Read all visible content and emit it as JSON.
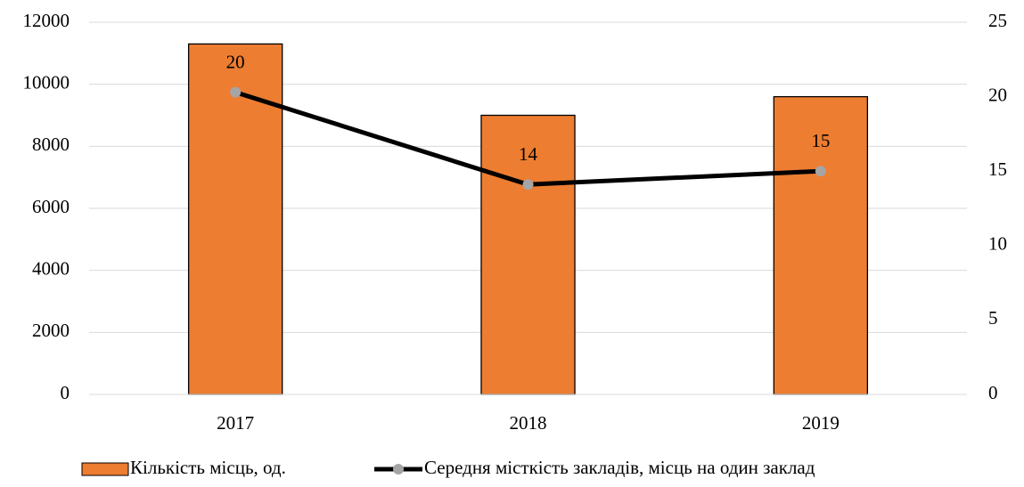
{
  "chart_data": {
    "type": "bar_line",
    "categories": [
      "2017",
      "2018",
      "2019"
    ],
    "series": [
      {
        "name": "Кількість місць, од.",
        "type": "bar",
        "color": "#ed7d31",
        "values": [
          11300,
          9000,
          9600
        ]
      },
      {
        "name": "Середня місткість закладів, місць на один заклад",
        "type": "line",
        "axis": "y2",
        "color": "#000000",
        "marker_color": "#a5a5a5",
        "values": [
          20.3,
          14.1,
          15.0
        ],
        "value_labels": [
          "20",
          "14",
          "15"
        ]
      }
    ],
    "ylim": [
      0,
      12000
    ],
    "yticks": [
      0,
      2000,
      4000,
      6000,
      8000,
      10000,
      12000
    ],
    "y2lim": [
      0,
      25
    ],
    "y2ticks": [
      0,
      5,
      10,
      15,
      20,
      25
    ],
    "grid": true,
    "legend": "bottom"
  }
}
